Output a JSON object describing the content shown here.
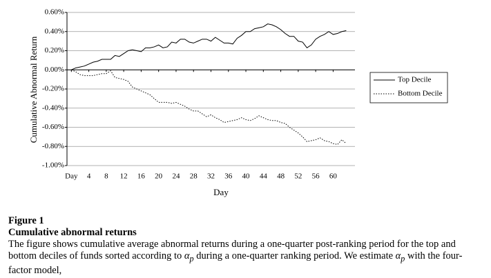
{
  "chart_data": {
    "type": "line",
    "xlabel": "Day",
    "ylabel": "Cumulative Abnormal Return",
    "x": [
      0,
      1,
      2,
      3,
      4,
      5,
      6,
      7,
      8,
      9,
      10,
      11,
      12,
      13,
      14,
      15,
      16,
      17,
      18,
      19,
      20,
      21,
      22,
      23,
      24,
      25,
      26,
      27,
      28,
      29,
      30,
      31,
      32,
      33,
      34,
      35,
      36,
      37,
      38,
      39,
      40,
      41,
      42,
      43,
      44,
      45,
      46,
      47,
      48,
      49,
      50,
      51,
      52,
      53,
      54,
      55,
      56,
      57,
      58,
      59,
      60,
      61,
      62,
      63
    ],
    "series": [
      {
        "name": "Top Decile",
        "color": "#000000",
        "line_style": "solid",
        "values": [
          0,
          0.02,
          0.03,
          0.04,
          0.06,
          0.08,
          0.09,
          0.11,
          0.11,
          0.11,
          0.15,
          0.14,
          0.17,
          0.2,
          0.21,
          0.2,
          0.19,
          0.23,
          0.23,
          0.24,
          0.26,
          0.23,
          0.24,
          0.29,
          0.28,
          0.32,
          0.32,
          0.29,
          0.28,
          0.3,
          0.32,
          0.32,
          0.3,
          0.34,
          0.31,
          0.28,
          0.28,
          0.27,
          0.33,
          0.36,
          0.4,
          0.4,
          0.43,
          0.44,
          0.45,
          0.48,
          0.47,
          0.45,
          0.42,
          0.38,
          0.35,
          0.35,
          0.3,
          0.29,
          0.23,
          0.26,
          0.32,
          0.35,
          0.37,
          0.4,
          0.37,
          0.38,
          0.4,
          0.41
        ]
      },
      {
        "name": "Bottom Decile",
        "color": "#000000",
        "line_style": "dotted",
        "values": [
          0,
          -0.02,
          -0.05,
          -0.06,
          -0.06,
          -0.06,
          -0.05,
          -0.04,
          -0.04,
          -0.01,
          -0.08,
          -0.09,
          -0.1,
          -0.12,
          -0.18,
          -0.2,
          -0.22,
          -0.24,
          -0.26,
          -0.3,
          -0.34,
          -0.34,
          -0.34,
          -0.35,
          -0.34,
          -0.36,
          -0.38,
          -0.41,
          -0.43,
          -0.43,
          -0.46,
          -0.49,
          -0.47,
          -0.5,
          -0.52,
          -0.55,
          -0.54,
          -0.53,
          -0.52,
          -0.5,
          -0.52,
          -0.53,
          -0.51,
          -0.48,
          -0.5,
          -0.52,
          -0.53,
          -0.53,
          -0.55,
          -0.56,
          -0.6,
          -0.63,
          -0.66,
          -0.7,
          -0.75,
          -0.74,
          -0.73,
          -0.71,
          -0.74,
          -0.75,
          -0.77,
          -0.78,
          -0.73,
          -0.77
        ]
      }
    ],
    "xlim": [
      -1,
      65
    ],
    "xticks": [
      {
        "value": 0,
        "label": "Day"
      },
      4,
      8,
      12,
      16,
      20,
      24,
      28,
      32,
      36,
      40,
      44,
      48,
      52,
      56,
      60
    ],
    "ylim": [
      -1,
      0.6
    ],
    "yticks": [
      {
        "value": -1,
        "label": "-1.00%"
      },
      {
        "value": -0.8,
        "label": "-0.80%"
      },
      {
        "value": -0.6,
        "label": "-0.60%"
      },
      {
        "value": -0.4,
        "label": "-0.40%"
      },
      {
        "value": -0.2,
        "label": "-0.20%"
      },
      {
        "value": 0,
        "label": "0.00%"
      },
      {
        "value": 0.2,
        "label": "0.20%"
      },
      {
        "value": 0.4,
        "label": "0.40%"
      },
      {
        "value": 0.6,
        "label": "0.60%"
      }
    ],
    "grid": true,
    "legend": "right"
  },
  "caption": {
    "figure": "Figure 1",
    "title": "Cumulative abnormal returns",
    "paragraph": [
      "The figure shows cumulative average abnormal returns during a one-quarter post-ranking period for the top and bottom deciles of funds sorted according to ",
      " during a one-quarter ranking period. We estimate ",
      " with the four-factor model,"
    ],
    "symbol": "α",
    "symbol_subscript": "p"
  }
}
